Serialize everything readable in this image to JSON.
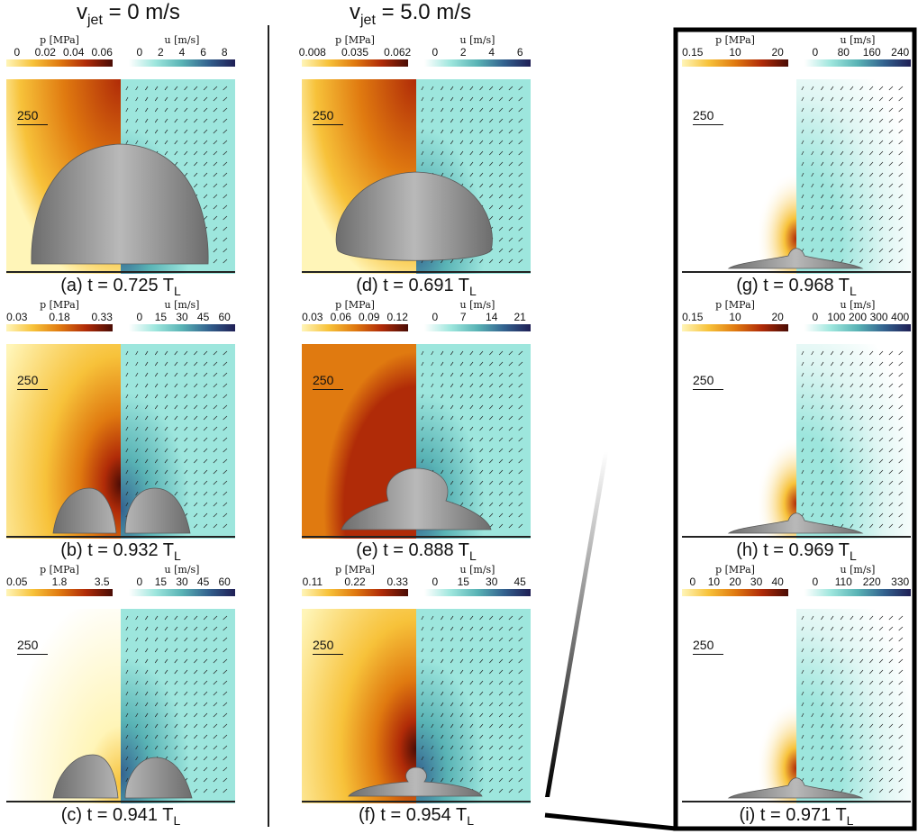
{
  "headers": {
    "left": {
      "v": "v",
      "sub": "jet",
      "rest": " = 0 m/s"
    },
    "right": {
      "v": "v",
      "sub": "jet",
      "rest": " = 5.0 m/s"
    }
  },
  "scale_label": "250",
  "colorbar_titles": {
    "p": "p [MPa]",
    "u": "u [m/s]"
  },
  "colors": {
    "pressure": [
      "#fff5b8",
      "#f7c23a",
      "#e07a10",
      "#b02b08",
      "#4a0c05"
    ],
    "velocity": [
      "#ffffff",
      "#9de6dd",
      "#59b3b5",
      "#33628f",
      "#1f1f55"
    ],
    "bubble": "#8f8f8f",
    "wall": "#222222"
  },
  "panels": [
    {
      "id": "a",
      "caption_main": "(a) t = 0.725 T",
      "caption_sub": "L",
      "p_ticks": [
        "0",
        "0.02",
        "0.04",
        "0.06"
      ],
      "u_ticks": [
        "0",
        "2",
        "4",
        "6",
        "8"
      ],
      "shape": "dome",
      "p_bg": "full"
    },
    {
      "id": "b",
      "caption_main": "(b) t = 0.932 T",
      "caption_sub": "L",
      "p_ticks": [
        "0.03",
        "0.18",
        "0.33"
      ],
      "u_ticks": [
        "0",
        "15",
        "30",
        "45",
        "60"
      ],
      "shape": "split",
      "p_bg": "jet"
    },
    {
      "id": "c",
      "caption_main": "(c) t = 0.941 T",
      "caption_sub": "L",
      "p_ticks": [
        "0.05",
        "1.8",
        "3.5"
      ],
      "u_ticks": [
        "0",
        "15",
        "30",
        "45",
        "60"
      ],
      "shape": "split-small",
      "p_bg": "faint"
    },
    {
      "id": "d",
      "caption_main": "(d) t = 0.691 T",
      "caption_sub": "L",
      "p_ticks": [
        "0.008",
        "0.035",
        "0.062"
      ],
      "u_ticks": [
        "0",
        "2",
        "4",
        "6"
      ],
      "shape": "mushroom",
      "p_bg": "full"
    },
    {
      "id": "e",
      "caption_main": "(e) t = 0.888 T",
      "caption_sub": "L",
      "p_ticks": [
        "0.03",
        "0.06",
        "0.09",
        "0.12"
      ],
      "u_ticks": [
        "0",
        "7",
        "14",
        "21"
      ],
      "shape": "flat-cap",
      "p_bg": "dark"
    },
    {
      "id": "f",
      "caption_main": "(f) t = 0.954 T",
      "caption_sub": "L",
      "p_ticks": [
        "0.11",
        "0.22",
        "0.33"
      ],
      "u_ticks": [
        "0",
        "15",
        "30",
        "45"
      ],
      "shape": "flat-small",
      "p_bg": "jet"
    },
    {
      "id": "g",
      "caption_main": "(g) t = 0.968 T",
      "caption_sub": "L",
      "p_ticks": [
        "0.15",
        "10",
        "20"
      ],
      "u_ticks": [
        "0",
        "80",
        "160",
        "240"
      ],
      "shape": "thin",
      "p_bg": "none"
    },
    {
      "id": "h",
      "caption_main": "(h) t = 0.969 T",
      "caption_sub": "L",
      "p_ticks": [
        "0.15",
        "10",
        "20"
      ],
      "u_ticks": [
        "0",
        "100",
        "200",
        "300",
        "400"
      ],
      "shape": "thin",
      "p_bg": "none"
    },
    {
      "id": "i",
      "caption_main": "(i) t = 0.971 T",
      "caption_sub": "L",
      "p_ticks": [
        "0",
        "10",
        "20",
        "30",
        "40"
      ],
      "u_ticks": [
        "0",
        "110",
        "220",
        "330"
      ],
      "shape": "thin",
      "p_bg": "none"
    }
  ]
}
